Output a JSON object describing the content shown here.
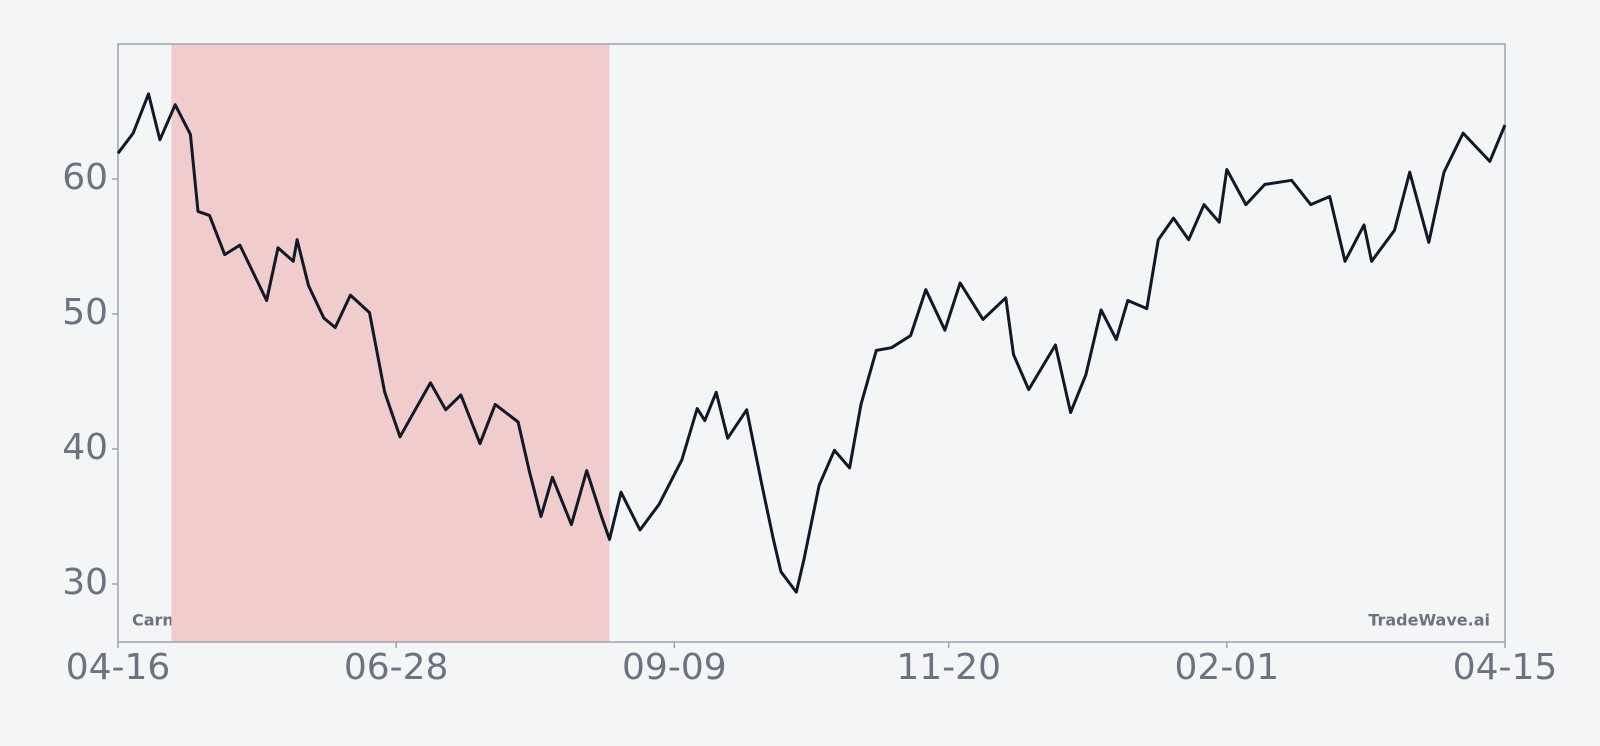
{
  "chart_data": {
    "type": "line",
    "x": [
      "04-16",
      "04-20",
      "04-24",
      "04-27",
      "05-01",
      "05-05",
      "05-07",
      "05-10",
      "05-14",
      "05-18",
      "05-25",
      "05-28",
      "06-01",
      "06-02",
      "06-05",
      "06-09",
      "06-12",
      "06-16",
      "06-21",
      "06-25",
      "06-29",
      "07-03",
      "07-07",
      "07-11",
      "07-15",
      "07-20",
      "07-24",
      "07-30",
      "08-02",
      "08-05",
      "08-08",
      "08-13",
      "08-17",
      "08-21",
      "08-23",
      "08-26",
      "08-31",
      "09-05",
      "09-11",
      "09-15",
      "09-17",
      "09-20",
      "09-23",
      "09-28",
      "10-02",
      "10-05",
      "10-07",
      "10-11",
      "10-13",
      "10-17",
      "10-21",
      "10-25",
      "10-28",
      "11-01",
      "11-05",
      "11-10",
      "11-14",
      "11-19",
      "11-23",
      "11-29",
      "12-05",
      "12-07",
      "12-11",
      "12-18",
      "12-22",
      "12-26",
      "12-30",
      "01-03",
      "01-06",
      "01-11",
      "01-14",
      "01-18",
      "01-22",
      "01-26",
      "01-30",
      "02-01",
      "02-06",
      "02-11",
      "02-18",
      "02-23",
      "02-28",
      "03-04",
      "03-09",
      "03-11",
      "03-17",
      "03-21",
      "03-26",
      "03-30",
      "04-04",
      "04-11",
      "04-15"
    ],
    "series": [
      {
        "color": "#111827",
        "values": [
          61.9,
          63.4,
          66.3,
          62.9,
          65.5,
          63.3,
          57.6,
          57.3,
          54.4,
          55.1,
          51.0,
          54.9,
          53.9,
          55.5,
          52.1,
          49.7,
          49.0,
          51.4,
          50.1,
          44.2,
          40.9,
          42.9,
          44.9,
          42.9,
          44.0,
          40.4,
          43.3,
          42.0,
          38.3,
          35.0,
          37.9,
          34.4,
          38.4,
          34.9,
          33.3,
          36.8,
          34.0,
          35.9,
          39.2,
          43.0,
          42.1,
          44.2,
          40.8,
          42.9,
          37.3,
          33.3,
          30.9,
          29.4,
          31.8,
          37.3,
          39.9,
          38.6,
          43.3,
          47.3,
          47.5,
          48.4,
          51.8,
          48.8,
          52.3,
          49.6,
          51.2,
          47.0,
          44.4,
          47.7,
          42.7,
          45.5,
          50.3,
          48.1,
          51.0,
          50.4,
          55.5,
          57.1,
          55.5,
          58.1,
          56.8,
          60.7,
          58.1,
          59.6,
          59.9,
          58.1,
          58.7,
          53.9,
          56.6,
          53.9,
          56.2,
          60.5,
          55.3,
          60.5,
          63.4,
          61.3,
          64.0
        ]
      }
    ],
    "shade": {
      "x": [
        "04-30",
        "08-23"
      ],
      "color": "#f0cccc"
    },
    "annotations": [
      "Carnival",
      "TradeWave.ai"
    ],
    "xlim": [
      "04-16",
      "04-15"
    ],
    "xticks": [
      "04-16",
      "06-28",
      "09-09",
      "11-20",
      "02-01",
      "04-15"
    ],
    "ylim": [
      25.7,
      70
    ],
    "yticks": [
      30,
      40,
      50,
      60
    ]
  }
}
